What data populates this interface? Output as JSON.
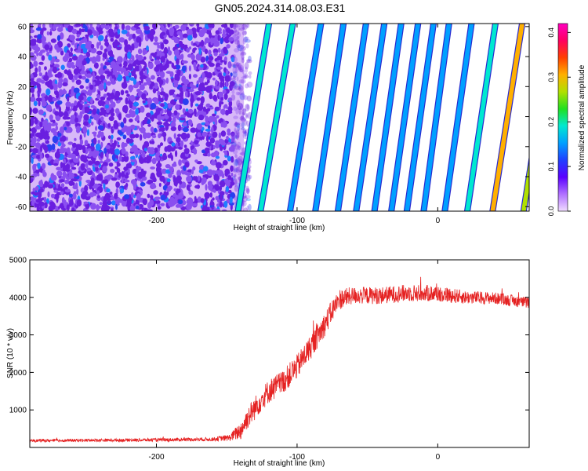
{
  "title": "GN05.2024.314.08.03.E31",
  "colors": {
    "spectrogram_noise": "#7a28e6",
    "snr_line": "#e52222",
    "colorbar": [
      "#f0dcff",
      "#b070ff",
      "#5a00ff",
      "#2040ff",
      "#00a0ff",
      "#00e8d0",
      "#20e020",
      "#b0e000",
      "#ffb000",
      "#ff4000",
      "#ff0060",
      "#ff00c0"
    ]
  },
  "chart_data": [
    {
      "type": "heatmap",
      "xlabel": "Height of straight line (km)",
      "ylabel": "Frequency (Hz)",
      "xlim": [
        -290,
        65
      ],
      "ylim": [
        -63,
        62
      ],
      "xticks": [
        -200,
        -100,
        0
      ],
      "yticks": [
        -60,
        -40,
        -20,
        0,
        20,
        40,
        60
      ],
      "colorbar": {
        "label": "Normalized spectral amplitude",
        "range": [
          0.0,
          0.42
        ],
        "ticks": [
          "0.0",
          "0.1",
          "0.2",
          "0.3",
          "0.4"
        ]
      },
      "noise_region_x": [
        -290,
        -140
      ],
      "stripes": [
        {
          "x_at_bottom": -142,
          "x_at_top": -120,
          "amplitude": 0.2
        },
        {
          "x_at_bottom": -126,
          "x_at_top": -103,
          "amplitude": 0.18
        },
        {
          "x_at_bottom": -105,
          "x_at_top": -83,
          "amplitude": 0.17
        },
        {
          "x_at_bottom": -87,
          "x_at_top": -67,
          "amplitude": 0.16
        },
        {
          "x_at_bottom": -71,
          "x_at_top": -51,
          "amplitude": 0.15
        },
        {
          "x_at_bottom": -58,
          "x_at_top": -38,
          "amplitude": 0.14
        },
        {
          "x_at_bottom": -45,
          "x_at_top": -26,
          "amplitude": 0.15
        },
        {
          "x_at_bottom": -33,
          "x_at_top": -14,
          "amplitude": 0.16
        },
        {
          "x_at_bottom": -22,
          "x_at_top": -3,
          "amplitude": 0.14
        },
        {
          "x_at_bottom": -10,
          "x_at_top": 8,
          "amplitude": 0.15
        },
        {
          "x_at_bottom": 5,
          "x_at_top": 24,
          "amplitude": 0.17
        },
        {
          "x_at_bottom": 21,
          "x_at_top": 41,
          "amplitude": 0.2
        },
        {
          "x_at_bottom": 39,
          "x_at_top": 60,
          "amplitude": 0.3
        },
        {
          "x_at_bottom": 61,
          "x_at_top": 82,
          "amplitude": 0.25
        }
      ]
    },
    {
      "type": "line",
      "xlabel": "Height of straight line (km)",
      "ylabel": "SNR (10 * v/v)",
      "xlim": [
        -290,
        65
      ],
      "ylim": [
        0,
        5000
      ],
      "xticks": [
        -200,
        -100,
        0
      ],
      "yticks": [
        1000,
        2000,
        3000,
        4000,
        5000
      ],
      "series": [
        {
          "x": [
            -290,
            -250,
            -200,
            -160,
            -148,
            -140,
            -135,
            -130,
            -125,
            -120,
            -110,
            -100,
            -90,
            -80,
            -75,
            -70,
            -60,
            -40,
            -20,
            0,
            20,
            40,
            65
          ],
          "y": [
            180,
            190,
            200,
            220,
            260,
            450,
            800,
            1050,
            1300,
            1500,
            1750,
            2150,
            2700,
            3300,
            3650,
            3950,
            4050,
            4050,
            4120,
            4100,
            4000,
            3980,
            3850
          ],
          "noise_amplitude": [
            40,
            40,
            45,
            50,
            90,
            250,
            300,
            320,
            320,
            320,
            320,
            330,
            330,
            320,
            300,
            280,
            230,
            230,
            230,
            220,
            180,
            160,
            150
          ]
        }
      ]
    }
  ]
}
